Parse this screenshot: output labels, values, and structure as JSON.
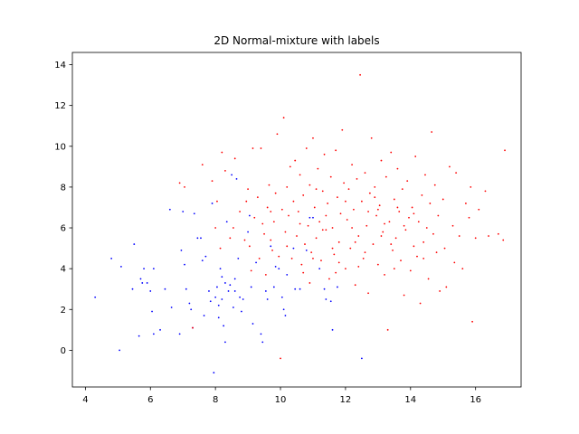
{
  "chart_data": {
    "type": "scatter",
    "title": "2D Normal-mixture with labels",
    "xlabel": "",
    "ylabel": "",
    "xlim": [
      3.6,
      17.4
    ],
    "ylim": [
      -1.8,
      14.6
    ],
    "x_ticks": [
      4,
      6,
      8,
      10,
      12,
      14,
      16
    ],
    "y_ticks": [
      0,
      2,
      4,
      6,
      8,
      10,
      12,
      14
    ],
    "grid": false,
    "legend": "none",
    "marker_size_note": "tiny dots",
    "series": [
      {
        "color": "#0000ff",
        "points": [
          [
            4.3,
            2.6
          ],
          [
            4.8,
            4.5
          ],
          [
            5.05,
            0.0
          ],
          [
            5.1,
            4.1
          ],
          [
            5.45,
            3.0
          ],
          [
            5.5,
            5.2
          ],
          [
            5.65,
            0.7
          ],
          [
            5.7,
            3.5
          ],
          [
            5.75,
            3.3
          ],
          [
            5.8,
            4.0
          ],
          [
            5.9,
            3.3
          ],
          [
            6.0,
            2.9
          ],
          [
            6.05,
            1.9
          ],
          [
            6.1,
            0.8
          ],
          [
            6.1,
            4.0
          ],
          [
            6.3,
            1.0
          ],
          [
            6.45,
            3.0
          ],
          [
            6.6,
            6.9
          ],
          [
            6.65,
            2.1
          ],
          [
            6.9,
            0.8
          ],
          [
            6.95,
            4.9
          ],
          [
            7.0,
            6.8
          ],
          [
            7.05,
            4.2
          ],
          [
            7.1,
            3.0
          ],
          [
            7.2,
            2.3
          ],
          [
            7.25,
            2.0
          ],
          [
            7.3,
            1.1
          ],
          [
            7.35,
            6.7
          ],
          [
            7.45,
            5.5
          ],
          [
            7.55,
            5.5
          ],
          [
            7.6,
            4.4
          ],
          [
            7.65,
            1.7
          ],
          [
            7.7,
            4.6
          ],
          [
            7.8,
            2.9
          ],
          [
            7.85,
            2.4
          ],
          [
            7.9,
            7.2
          ],
          [
            7.95,
            -1.1
          ],
          [
            8.0,
            2.6
          ],
          [
            8.05,
            3.1
          ],
          [
            8.1,
            2.2
          ],
          [
            8.1,
            1.6
          ],
          [
            8.15,
            4.0
          ],
          [
            8.2,
            3.6
          ],
          [
            8.2,
            2.5
          ],
          [
            8.25,
            1.2
          ],
          [
            8.3,
            3.3
          ],
          [
            8.3,
            0.4
          ],
          [
            8.35,
            6.3
          ],
          [
            8.4,
            2.9
          ],
          [
            8.45,
            3.2
          ],
          [
            8.5,
            8.6
          ],
          [
            8.55,
            2.1
          ],
          [
            8.6,
            2.9
          ],
          [
            8.6,
            3.5
          ],
          [
            8.65,
            8.4
          ],
          [
            8.7,
            4.5
          ],
          [
            8.75,
            2.6
          ],
          [
            8.8,
            1.9
          ],
          [
            8.85,
            2.5
          ],
          [
            9.0,
            5.8
          ],
          [
            9.05,
            6.6
          ],
          [
            9.1,
            3.1
          ],
          [
            9.15,
            1.3
          ],
          [
            9.25,
            4.3
          ],
          [
            9.4,
            0.8
          ],
          [
            9.45,
            0.4
          ],
          [
            9.55,
            2.9
          ],
          [
            9.6,
            2.5
          ],
          [
            9.7,
            5.1
          ],
          [
            9.8,
            3.1
          ],
          [
            9.85,
            4.1
          ],
          [
            9.95,
            4.0
          ],
          [
            10.05,
            2.6
          ],
          [
            10.1,
            2.0
          ],
          [
            10.15,
            1.7
          ],
          [
            10.2,
            3.7
          ],
          [
            10.4,
            5.0
          ],
          [
            10.45,
            3.0
          ],
          [
            10.6,
            3.0
          ],
          [
            10.8,
            4.9
          ],
          [
            10.9,
            6.5
          ],
          [
            11.0,
            6.5
          ],
          [
            11.2,
            4.0
          ],
          [
            11.35,
            3.0
          ],
          [
            11.4,
            2.5
          ],
          [
            11.55,
            2.4
          ],
          [
            11.6,
            1.0
          ],
          [
            11.75,
            3.1
          ],
          [
            12.5,
            -0.4
          ]
        ]
      },
      {
        "color": "#ff0000",
        "points": [
          [
            6.9,
            8.2
          ],
          [
            7.05,
            8.0
          ],
          [
            7.3,
            1.1
          ],
          [
            7.6,
            9.1
          ],
          [
            7.9,
            8.3
          ],
          [
            8.0,
            6.0
          ],
          [
            8.05,
            7.3
          ],
          [
            8.15,
            5.0
          ],
          [
            8.2,
            9.7
          ],
          [
            8.3,
            8.8
          ],
          [
            8.45,
            5.5
          ],
          [
            8.55,
            6.0
          ],
          [
            8.6,
            9.4
          ],
          [
            8.75,
            6.8
          ],
          [
            8.9,
            5.4
          ],
          [
            8.95,
            7.3
          ],
          [
            9.0,
            7.9
          ],
          [
            9.05,
            5.1
          ],
          [
            9.1,
            3.9
          ],
          [
            9.15,
            9.9
          ],
          [
            9.2,
            6.5
          ],
          [
            9.3,
            7.5
          ],
          [
            9.35,
            4.5
          ],
          [
            9.4,
            9.9
          ],
          [
            9.45,
            6.2
          ],
          [
            9.5,
            5.7
          ],
          [
            9.55,
            3.7
          ],
          [
            9.6,
            7.0
          ],
          [
            9.65,
            8.1
          ],
          [
            9.7,
            5.4
          ],
          [
            9.75,
            4.9
          ],
          [
            9.8,
            6.3
          ],
          [
            9.85,
            7.7
          ],
          [
            9.9,
            10.6
          ],
          [
            9.95,
            4.6
          ],
          [
            10.0,
            -0.4
          ],
          [
            10.05,
            6.9
          ],
          [
            10.1,
            11.4
          ],
          [
            10.15,
            5.8
          ],
          [
            10.2,
            8.0
          ],
          [
            10.25,
            6.6
          ],
          [
            10.3,
            9.0
          ],
          [
            10.35,
            4.5
          ],
          [
            10.4,
            7.3
          ],
          [
            10.45,
            9.3
          ],
          [
            10.5,
            5.6
          ],
          [
            10.55,
            6.8
          ],
          [
            10.6,
            8.6
          ],
          [
            10.65,
            4.2
          ],
          [
            10.7,
            7.6
          ],
          [
            10.75,
            5.2
          ],
          [
            10.8,
            9.9
          ],
          [
            10.85,
            6.1
          ],
          [
            10.9,
            8.1
          ],
          [
            10.95,
            4.8
          ],
          [
            11.0,
            10.4
          ],
          [
            11.05,
            7.0
          ],
          [
            11.1,
            5.5
          ],
          [
            11.15,
            8.9
          ],
          [
            11.2,
            6.3
          ],
          [
            11.25,
            4.4
          ],
          [
            11.3,
            7.8
          ],
          [
            11.35,
            9.6
          ],
          [
            11.4,
            5.9
          ],
          [
            11.45,
            7.2
          ],
          [
            11.5,
            3.5
          ],
          [
            11.55,
            8.5
          ],
          [
            11.6,
            6.0
          ],
          [
            11.65,
            4.7
          ],
          [
            11.7,
            9.8
          ],
          [
            11.75,
            7.5
          ],
          [
            11.8,
            5.3
          ],
          [
            11.85,
            6.7
          ],
          [
            11.9,
            10.8
          ],
          [
            11.95,
            8.2
          ],
          [
            12.0,
            4.0
          ],
          [
            12.05,
            6.4
          ],
          [
            12.1,
            7.9
          ],
          [
            12.15,
            5.0
          ],
          [
            12.2,
            9.1
          ],
          [
            12.25,
            6.9
          ],
          [
            12.3,
            3.2
          ],
          [
            12.35,
            8.4
          ],
          [
            12.4,
            5.6
          ],
          [
            12.45,
            13.5
          ],
          [
            12.5,
            7.3
          ],
          [
            12.55,
            4.5
          ],
          [
            12.6,
            8.7
          ],
          [
            12.65,
            6.1
          ],
          [
            12.7,
            2.8
          ],
          [
            12.75,
            7.7
          ],
          [
            12.8,
            10.4
          ],
          [
            12.85,
            5.2
          ],
          [
            12.9,
            8.0
          ],
          [
            12.95,
            6.6
          ],
          [
            13.0,
            4.2
          ],
          [
            13.05,
            7.1
          ],
          [
            13.1,
            9.3
          ],
          [
            13.15,
            5.8
          ],
          [
            13.2,
            3.7
          ],
          [
            13.25,
            8.5
          ],
          [
            13.3,
            1.0
          ],
          [
            13.35,
            6.3
          ],
          [
            13.4,
            9.7
          ],
          [
            13.45,
            4.9
          ],
          [
            13.5,
            7.4
          ],
          [
            13.55,
            5.5
          ],
          [
            13.6,
            8.9
          ],
          [
            13.65,
            6.8
          ],
          [
            13.7,
            4.4
          ],
          [
            13.75,
            7.9
          ],
          [
            13.8,
            2.7
          ],
          [
            13.85,
            5.9
          ],
          [
            13.9,
            8.3
          ],
          [
            13.95,
            6.5
          ],
          [
            14.0,
            3.9
          ],
          [
            14.05,
            7.0
          ],
          [
            14.1,
            5.1
          ],
          [
            14.15,
            9.5
          ],
          [
            14.2,
            4.6
          ],
          [
            14.25,
            6.3
          ],
          [
            14.3,
            2.3
          ],
          [
            14.35,
            7.6
          ],
          [
            14.4,
            5.3
          ],
          [
            14.45,
            8.6
          ],
          [
            14.5,
            6.0
          ],
          [
            14.55,
            3.5
          ],
          [
            14.6,
            7.2
          ],
          [
            14.65,
            10.7
          ],
          [
            14.7,
            5.7
          ],
          [
            14.75,
            8.1
          ],
          [
            14.8,
            4.8
          ],
          [
            14.85,
            6.6
          ],
          [
            14.9,
            2.9
          ],
          [
            15.0,
            7.4
          ],
          [
            15.05,
            5.0
          ],
          [
            15.1,
            3.1
          ],
          [
            15.2,
            9.0
          ],
          [
            15.3,
            6.1
          ],
          [
            15.35,
            4.3
          ],
          [
            15.4,
            8.7
          ],
          [
            15.5,
            5.6
          ],
          [
            15.6,
            4.0
          ],
          [
            15.7,
            7.2
          ],
          [
            15.8,
            6.5
          ],
          [
            15.85,
            8.0
          ],
          [
            15.9,
            1.4
          ],
          [
            16.0,
            5.5
          ],
          [
            16.1,
            6.9
          ],
          [
            16.3,
            7.8
          ],
          [
            16.4,
            5.6
          ],
          [
            16.7,
            5.7
          ],
          [
            16.85,
            5.4
          ],
          [
            16.9,
            9.8
          ],
          [
            11.0,
            4.5
          ],
          [
            11.3,
            5.9
          ],
          [
            11.7,
            3.8
          ],
          [
            12.2,
            6.0
          ],
          [
            12.6,
            4.8
          ],
          [
            13.0,
            6.9
          ],
          [
            13.4,
            5.2
          ],
          [
            13.8,
            6.1
          ],
          [
            10.7,
            3.8
          ],
          [
            11.1,
            7.9
          ],
          [
            12.0,
            7.3
          ],
          [
            12.9,
            7.5
          ],
          [
            13.2,
            6.2
          ],
          [
            13.6,
            7.0
          ],
          [
            10.2,
            5.1
          ],
          [
            10.6,
            6.2
          ],
          [
            11.4,
            6.6
          ],
          [
            11.8,
            4.3
          ],
          [
            12.3,
            5.3
          ],
          [
            12.7,
            6.8
          ],
          [
            13.1,
            5.6
          ],
          [
            14.1,
            6.7
          ],
          [
            14.4,
            4.5
          ],
          [
            9.7,
            6.8
          ],
          [
            10.9,
            3.3
          ],
          [
            11.6,
            5.0
          ],
          [
            12.4,
            4.1
          ],
          [
            13.5,
            4.0
          ]
        ]
      }
    ]
  }
}
